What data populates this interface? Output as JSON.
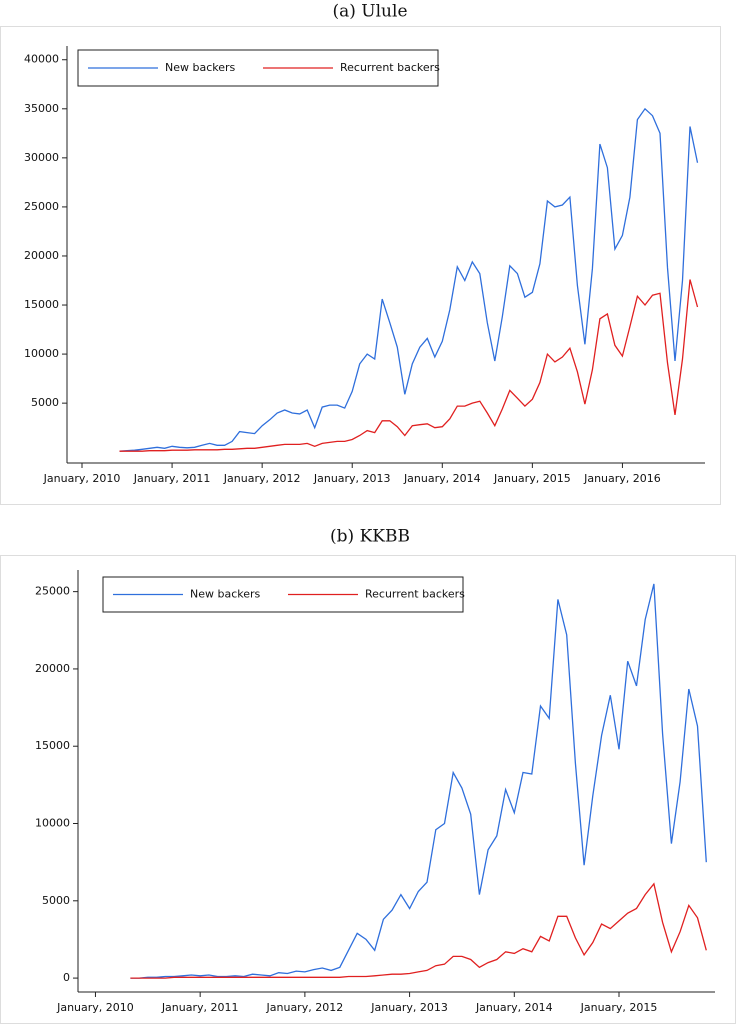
{
  "chart_data": [
    {
      "type": "line",
      "title": "(a) Ulule",
      "x": [
        "2010-06",
        "2010-07",
        "2010-08",
        "2010-09",
        "2010-10",
        "2010-11",
        "2010-12",
        "2011-01",
        "2011-02",
        "2011-03",
        "2011-04",
        "2011-05",
        "2011-06",
        "2011-07",
        "2011-08",
        "2011-09",
        "2011-10",
        "2011-11",
        "2011-12",
        "2012-01",
        "2012-02",
        "2012-03",
        "2012-04",
        "2012-05",
        "2012-06",
        "2012-07",
        "2012-08",
        "2012-09",
        "2012-10",
        "2012-11",
        "2012-12",
        "2013-01",
        "2013-02",
        "2013-03",
        "2013-04",
        "2013-05",
        "2013-06",
        "2013-07",
        "2013-08",
        "2013-09",
        "2013-10",
        "2013-11",
        "2013-12",
        "2014-01",
        "2014-02",
        "2014-03",
        "2014-04",
        "2014-05",
        "2014-06",
        "2014-07",
        "2014-08",
        "2014-09",
        "2014-10",
        "2014-11",
        "2014-12",
        "2015-01",
        "2015-02",
        "2015-03",
        "2015-04",
        "2015-05",
        "2015-06",
        "2015-07",
        "2015-08",
        "2015-09",
        "2015-10",
        "2015-11",
        "2015-12",
        "2016-01",
        "2016-02",
        "2016-03",
        "2016-04",
        "2016-05",
        "2016-06",
        "2016-07",
        "2016-08",
        "2016-09",
        "2016-10",
        "2016-11"
      ],
      "series": [
        {
          "name": "New backers",
          "color": "#2f6fdc",
          "values": [
            100,
            150,
            200,
            300,
            400,
            500,
            400,
            600,
            500,
            450,
            500,
            700,
            900,
            700,
            700,
            1100,
            2100,
            2000,
            1900,
            2700,
            3300,
            4000,
            4300,
            4000,
            3900,
            4300,
            2500,
            4600,
            4800,
            4800,
            4500,
            6200,
            9000,
            10000,
            9500,
            15600,
            13200,
            10700,
            5900,
            9000,
            10700,
            11600,
            9700,
            11300,
            14500,
            18900,
            17500,
            19400,
            18200,
            13200,
            9300,
            13800,
            19000,
            18200,
            15800,
            16300,
            19200,
            25600,
            25000,
            25200,
            26000,
            17000,
            11000,
            18700,
            31400,
            29000,
            20700,
            22100,
            26000,
            33900,
            35000,
            34300,
            32500,
            18800,
            9300,
            17500,
            33200,
            29500
          ]
        },
        {
          "name": "Recurrent backers",
          "color": "#e02020",
          "values": [
            100,
            100,
            100,
            100,
            150,
            150,
            150,
            200,
            200,
            200,
            250,
            250,
            250,
            250,
            300,
            300,
            350,
            400,
            400,
            500,
            600,
            700,
            800,
            800,
            800,
            900,
            600,
            900,
            1000,
            1100,
            1100,
            1300,
            1700,
            2200,
            2000,
            3200,
            3200,
            2600,
            1700,
            2700,
            2800,
            2900,
            2500,
            2600,
            3400,
            4700,
            4700,
            5000,
            5200,
            4000,
            2700,
            4400,
            6300,
            5500,
            4700,
            5400,
            7100,
            10000,
            9200,
            9700,
            10600,
            8200,
            4900,
            8400,
            13600,
            14100,
            10900,
            9800,
            12800,
            15900,
            15000,
            16000,
            16200,
            9100,
            3800,
            9500,
            17600,
            14800
          ]
        }
      ],
      "xlim": [
        "2009-11",
        "2016-12"
      ],
      "xticks": [
        {
          "value": "2010-01",
          "label": "January, 2010"
        },
        {
          "value": "2011-01",
          "label": "January, 2011"
        },
        {
          "value": "2012-01",
          "label": "January, 2012"
        },
        {
          "value": "2013-01",
          "label": "January, 2013"
        },
        {
          "value": "2014-01",
          "label": "January, 2014"
        },
        {
          "value": "2015-01",
          "label": "January, 2015"
        },
        {
          "value": "2016-01",
          "label": "January, 2016"
        }
      ],
      "ylim": [
        -1100,
        41400
      ],
      "yticks": [
        5000,
        10000,
        15000,
        20000,
        25000,
        30000,
        35000,
        40000
      ],
      "legend": "top-left"
    },
    {
      "type": "line",
      "title": "(b) KKBB",
      "x": [
        "2010-05",
        "2010-06",
        "2010-07",
        "2010-08",
        "2010-09",
        "2010-10",
        "2010-11",
        "2010-12",
        "2011-01",
        "2011-02",
        "2011-03",
        "2011-04",
        "2011-05",
        "2011-06",
        "2011-07",
        "2011-08",
        "2011-09",
        "2011-10",
        "2011-11",
        "2011-12",
        "2012-01",
        "2012-02",
        "2012-03",
        "2012-04",
        "2012-05",
        "2012-06",
        "2012-07",
        "2012-08",
        "2012-09",
        "2012-10",
        "2012-11",
        "2012-12",
        "2013-01",
        "2013-02",
        "2013-03",
        "2013-04",
        "2013-05",
        "2013-06",
        "2013-07",
        "2013-08",
        "2013-09",
        "2013-10",
        "2013-11",
        "2013-12",
        "2014-01",
        "2014-02",
        "2014-03",
        "2014-04",
        "2014-05",
        "2014-06",
        "2014-07",
        "2014-08",
        "2014-09",
        "2014-10",
        "2014-11",
        "2014-12",
        "2015-01",
        "2015-02",
        "2015-03",
        "2015-04",
        "2015-05",
        "2015-06",
        "2015-07",
        "2015-08",
        "2015-09",
        "2015-10",
        "2015-11"
      ],
      "series": [
        {
          "name": "New backers",
          "color": "#2f6fdc",
          "values": [
            0,
            0,
            50,
            50,
            100,
            100,
            150,
            200,
            150,
            200,
            100,
            100,
            150,
            100,
            250,
            200,
            150,
            350,
            300,
            450,
            400,
            550,
            650,
            500,
            700,
            1800,
            2900,
            2500,
            1800,
            3800,
            4400,
            5400,
            4500,
            5600,
            6200,
            9600,
            10000,
            13300,
            12300,
            10600,
            5400,
            8300,
            9200,
            12200,
            10700,
            13300,
            13200,
            17600,
            16800,
            24500,
            22200,
            13900,
            7300,
            11800,
            15700,
            18300,
            14800,
            20500,
            18900,
            23200,
            25500,
            15800,
            8700,
            12700,
            18700,
            16300,
            7500
          ]
        },
        {
          "name": "Recurrent backers",
          "color": "#e02020",
          "values": [
            0,
            0,
            0,
            0,
            0,
            50,
            50,
            50,
            50,
            50,
            50,
            50,
            50,
            50,
            50,
            50,
            50,
            50,
            50,
            50,
            50,
            50,
            50,
            50,
            50,
            100,
            100,
            100,
            150,
            200,
            250,
            250,
            300,
            400,
            500,
            800,
            900,
            1400,
            1400,
            1200,
            700,
            1000,
            1200,
            1700,
            1600,
            1900,
            1700,
            2700,
            2400,
            4000,
            4000,
            2600,
            1500,
            2300,
            3500,
            3200,
            3700,
            4200,
            4500,
            5400,
            6100,
            3600,
            1700,
            3000,
            4700,
            3900,
            1800
          ]
        }
      ],
      "xlim": [
        "2009-11",
        "2015-12"
      ],
      "xticks": [
        {
          "value": "2010-01",
          "label": "January, 2010"
        },
        {
          "value": "2011-01",
          "label": "January, 2011"
        },
        {
          "value": "2012-01",
          "label": "January, 2012"
        },
        {
          "value": "2013-01",
          "label": "January, 2013"
        },
        {
          "value": "2014-01",
          "label": "January, 2014"
        },
        {
          "value": "2015-01",
          "label": "January, 2015"
        }
      ],
      "ylim": [
        -900,
        26400
      ],
      "yticks": [
        0,
        5000,
        10000,
        15000,
        20000,
        25000
      ],
      "legend": "top-left"
    }
  ]
}
